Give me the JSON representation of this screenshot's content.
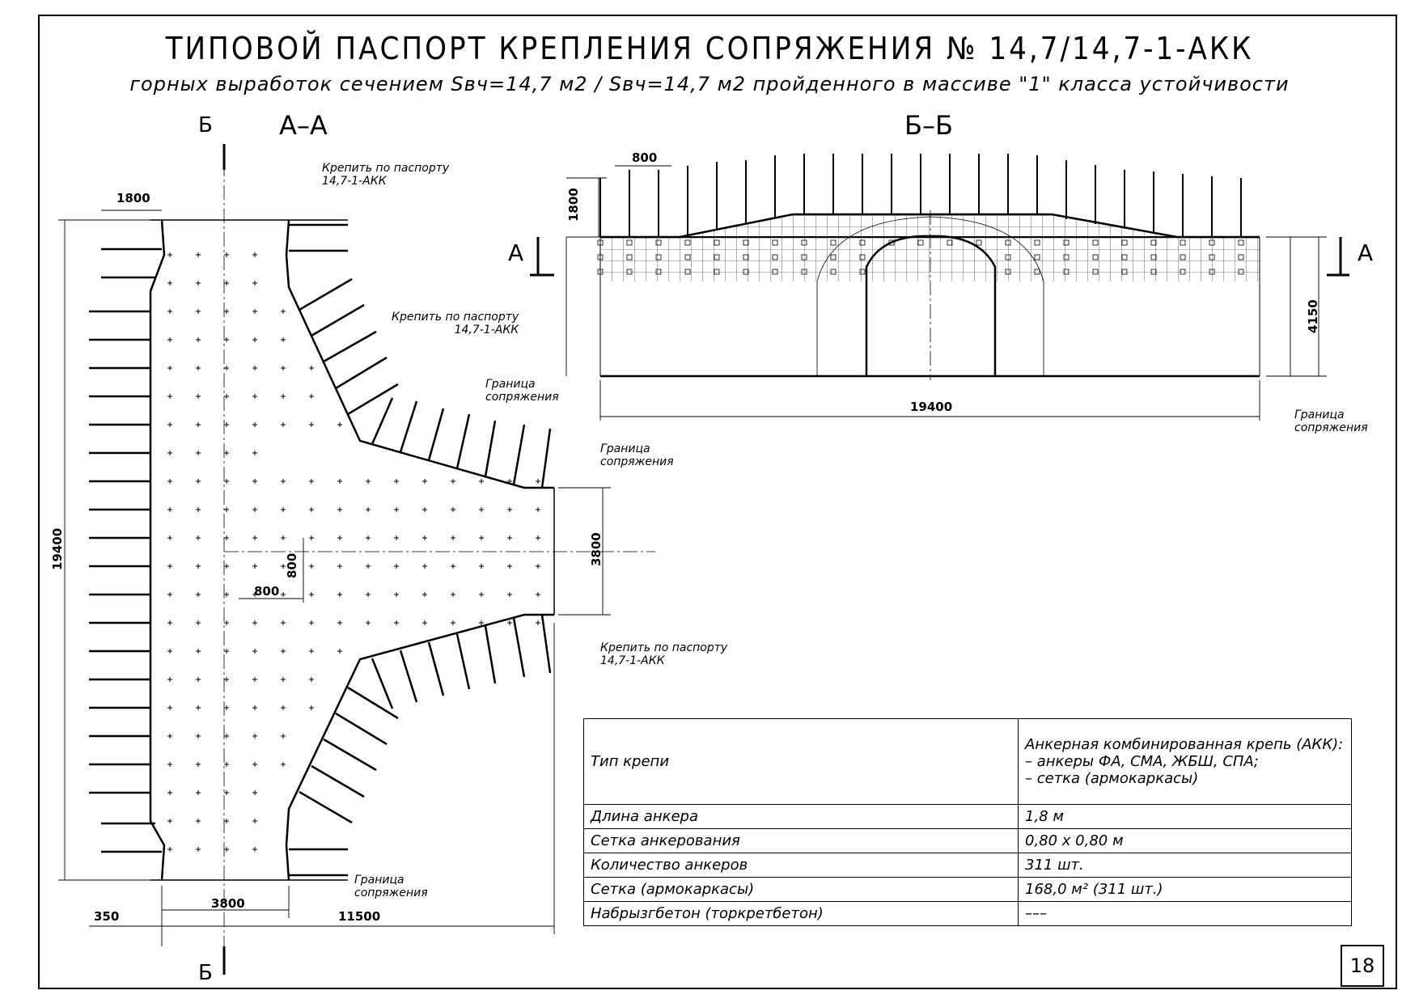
{
  "title": "ТИПОВОЙ ПАСПОРТ КРЕПЛЕНИЯ СОПРЯЖЕНИЯ № 14,7/14,7-1-АКК",
  "subtitle": "горных выработок сечением Sвч=14,7 м2 / Sвч=14,7 м2 пройденного в массиве \"1\" класса устойчивости",
  "sections": {
    "plan": "А–А",
    "elevation": "Б–Б",
    "cut_b": "Б",
    "cut_a": "А"
  },
  "notes": {
    "fix_passport": "Крепить по паспорту\n14,7-1-АКК",
    "boundary": "Граница\nсопряжения"
  },
  "dimensions": {
    "d1800": "1800",
    "d800": "800",
    "d19400": "19400",
    "d3800": "3800",
    "d350": "350",
    "d11500": "11500",
    "d4150": "4150"
  },
  "spec_table": [
    {
      "key": "Тип крепи",
      "value": "Анкерная комбинированная крепь (АКК):\n – анкеры ФА, СМА, ЖБШ, СПА;\n – сетка (армокаркасы)"
    },
    {
      "key": "Длина анкера",
      "value": "1,8 м"
    },
    {
      "key": "Сетка анкерования",
      "value": "0,80 х 0,80 м"
    },
    {
      "key": "Количество анкеров",
      "value": "311 шт."
    },
    {
      "key": "Сетка (армокаркасы)",
      "value": "168,0 м² (311 шт.)"
    },
    {
      "key": "Набрызгбетон (торкретбетон)",
      "value": "–––"
    }
  ],
  "page_number": "18"
}
